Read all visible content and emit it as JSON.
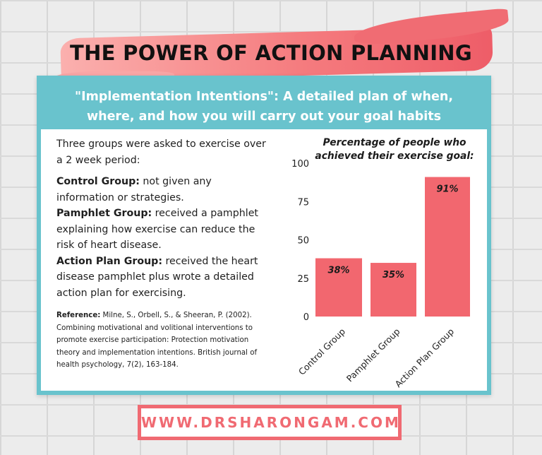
{
  "header": {
    "title": "THE POWER OF ACTION PLANNING"
  },
  "subtitle": {
    "line1": "\"Implementation Intentions\": A detailed plan of when,",
    "line2": "where, and how you will carry out your goal habits"
  },
  "study": {
    "intro": "Three groups were asked to exercise over a 2 week period:",
    "groups": [
      {
        "name": "Control Group:",
        "desc": " not given any information or strategies."
      },
      {
        "name": "Pamphlet Group:",
        "desc": " received a pamphlet explaining how exercise can reduce the risk of heart disease."
      },
      {
        "name": "Action Plan Group:",
        "desc": " received the heart disease pamphlet plus wrote a detailed action plan for exercising."
      }
    ],
    "reference_label": "Reference:",
    "reference_text": " Milne, S., Orbell, S., & Sheeran, P. (2002). Combining motivational and volitional interventions to promote exercise participation: Protection motivation theory and implementation intentions. British journal of health psychology, 7(2), 163-184."
  },
  "chart_data": {
    "type": "bar",
    "title": "Percentage of people who achieved their exercise goal:",
    "categories": [
      "Control Group",
      "Pamphlet Group",
      "Action Plan Group"
    ],
    "values": [
      38,
      35,
      91
    ],
    "data_labels": [
      "38%",
      "35%",
      "91%"
    ],
    "ylim": [
      0,
      100
    ],
    "yticks": [
      0,
      25,
      50,
      75,
      100
    ],
    "xlabel": "",
    "ylabel": "",
    "grid": false,
    "bar_color": "#f2676f"
  },
  "footer": {
    "website": "WWW.DRSHARONGAM.COM"
  },
  "colors": {
    "accent_coral": "#f06a72",
    "panel_teal": "#69c3cd",
    "text_dark": "#1f1f1f"
  }
}
